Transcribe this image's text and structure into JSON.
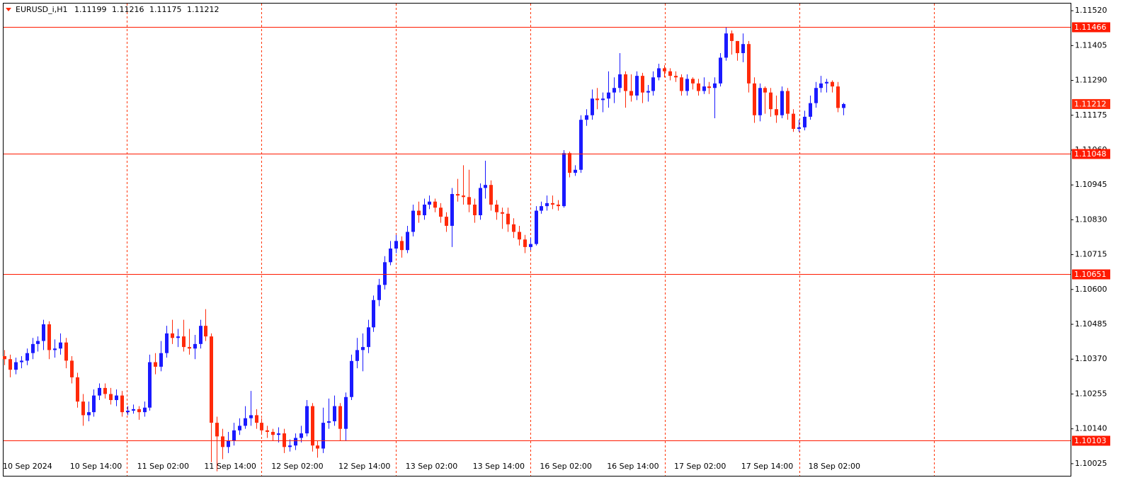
{
  "chart_data": {
    "type": "candlestick",
    "title": "EURUSD_i,H1",
    "categories": [
      "10 Sep 2024",
      null,
      null,
      null,
      null,
      null,
      null,
      null,
      null,
      null,
      null,
      null,
      "10 Sep 14:00",
      null,
      null,
      null,
      null,
      null,
      null,
      null,
      null,
      null,
      null,
      null,
      "11 Sep 02:00",
      null,
      null,
      null,
      null,
      null,
      null,
      null,
      null,
      null,
      null,
      null,
      "11 Sep 14:00",
      null,
      null,
      null,
      null,
      null,
      null,
      null,
      null,
      null,
      null,
      null,
      "12 Sep 02:00",
      null,
      null,
      null,
      null,
      null,
      null,
      null,
      null,
      null,
      null,
      null,
      "12 Sep 14:00",
      null,
      null,
      null,
      null,
      null,
      null,
      null,
      null,
      null,
      null,
      null,
      "13 Sep 02:00",
      null,
      null,
      null,
      null,
      null,
      null,
      null,
      null,
      null,
      null,
      null,
      "13 Sep 14:00",
      null,
      null,
      null,
      null,
      null,
      null,
      null,
      null,
      null,
      null,
      null,
      "16 Sep 02:00",
      null,
      null,
      null,
      null,
      null,
      null,
      null,
      null,
      null,
      null,
      null,
      "16 Sep 14:00",
      null,
      null,
      null,
      null,
      null,
      null,
      null,
      null,
      null,
      null,
      null,
      "17 Sep 02:00",
      null,
      null,
      null,
      null,
      null,
      null,
      null,
      null,
      null,
      null,
      null,
      "17 Sep 14:00",
      null,
      null,
      null,
      null,
      null,
      null,
      null,
      null,
      null,
      null,
      null,
      "18 Sep 02:00",
      null,
      null,
      null,
      null,
      null,
      null
    ],
    "open": [
      1.1038,
      1.1037,
      1.10335,
      1.1036,
      1.10365,
      1.1039,
      1.1042,
      1.1043,
      1.10485,
      1.104,
      1.10405,
      1.10425,
      1.10365,
      1.1031,
      1.1023,
      1.10185,
      1.10195,
      1.1025,
      1.10275,
      1.10255,
      1.10235,
      1.1025,
      1.10195,
      1.102,
      1.10205,
      1.10195,
      1.1021,
      1.1036,
      1.10345,
      1.1039,
      1.10455,
      1.1044,
      1.10445,
      1.1041,
      1.10405,
      1.1042,
      1.1048,
      1.10445,
      1.1016,
      1.10115,
      1.1008,
      1.101,
      1.10135,
      1.1015,
      1.10175,
      1.10185,
      1.1016,
      1.10135,
      1.1013,
      1.1012,
      1.10125,
      1.1008,
      1.10085,
      1.1011,
      1.10125,
      1.10215,
      1.10085,
      1.10075,
      1.1016,
      1.10165,
      1.10215,
      1.1014,
      1.10245,
      1.10364,
      1.104,
      1.1041,
      1.10475,
      1.10565,
      1.10615,
      1.1069,
      1.10735,
      1.1076,
      1.1073,
      1.1079,
      1.1086,
      1.10845,
      1.1088,
      1.1089,
      1.1087,
      1.1084,
      1.1081,
      1.10915,
      1.1091,
      1.10905,
      1.1088,
      1.10845,
      1.10935,
      1.10945,
      1.1088,
      1.10855,
      1.1085,
      1.10815,
      1.1079,
      1.10765,
      1.1074,
      1.1075,
      1.1086,
      1.10875,
      1.10885,
      1.1088,
      1.10875,
      1.1105,
      1.10985,
      1.10995,
      1.1116,
      1.11175,
      1.1123,
      1.11225,
      1.1123,
      1.1125,
      1.11265,
      1.1131,
      1.11255,
      1.1124,
      1.11305,
      1.1125,
      1.11255,
      1.113,
      1.1133,
      1.1132,
      1.11305,
      1.113,
      1.11255,
      1.11295,
      1.1128,
      1.11255,
      1.1127,
      1.11265,
      1.1128,
      1.11365,
      1.11445,
      1.1142,
      1.1138,
      1.1141,
      1.1128,
      1.11175,
      1.11265,
      1.1125,
      1.11195,
      1.11175,
      1.11255,
      1.1118,
      1.1113,
      1.11135,
      1.1117,
      1.11215,
      1.11265,
      1.1128,
      1.11285,
      1.1127,
      1.11199
    ],
    "high": [
      1.104,
      1.10385,
      1.10375,
      1.1038,
      1.10405,
      1.1044,
      1.10445,
      1.105,
      1.10495,
      1.10435,
      1.10455,
      1.1044,
      1.1038,
      1.10325,
      1.10255,
      1.1023,
      1.1027,
      1.1029,
      1.1029,
      1.10275,
      1.1027,
      1.10265,
      1.10215,
      1.1022,
      1.10215,
      1.1023,
      1.10385,
      1.1039,
      1.1043,
      1.1048,
      1.105,
      1.1047,
      1.105,
      1.1047,
      1.1045,
      1.105,
      1.10535,
      1.10455,
      1.1018,
      1.1014,
      1.1013,
      1.1016,
      1.10175,
      1.10215,
      1.10265,
      1.10205,
      1.10175,
      1.1015,
      1.1014,
      1.10145,
      1.1014,
      1.10105,
      1.10125,
      1.1015,
      1.10235,
      1.10225,
      1.101,
      1.1021,
      1.1024,
      1.1025,
      1.10225,
      1.1026,
      1.10385,
      1.1044,
      1.10455,
      1.105,
      1.1058,
      1.10635,
      1.1071,
      1.1076,
      1.1078,
      1.10775,
      1.1081,
      1.1088,
      1.1089,
      1.109,
      1.1091,
      1.109,
      1.10885,
      1.10855,
      1.10935,
      1.10965,
      1.1101,
      1.10995,
      1.109,
      1.1095,
      1.11025,
      1.1096,
      1.10895,
      1.1087,
      1.1087,
      1.10835,
      1.1081,
      1.1078,
      1.1077,
      1.10875,
      1.1089,
      1.1091,
      1.1091,
      1.10895,
      1.1106,
      1.11055,
      1.1101,
      1.11175,
      1.11195,
      1.1126,
      1.11265,
      1.1125,
      1.1132,
      1.113,
      1.1138,
      1.1132,
      1.1131,
      1.1132,
      1.11315,
      1.11275,
      1.1132,
      1.11345,
      1.1134,
      1.1133,
      1.1132,
      1.1131,
      1.1131,
      1.113,
      1.11295,
      1.113,
      1.11285,
      1.113,
      1.1138,
      1.11465,
      1.11455,
      1.1142,
      1.11445,
      1.1142,
      1.113,
      1.1128,
      1.1127,
      1.11265,
      1.1124,
      1.1127,
      1.11265,
      1.11195,
      1.1116,
      1.1119,
      1.1124,
      1.11285,
      1.11305,
      1.11295,
      1.1129,
      1.11285,
      1.11216
    ],
    "low": [
      1.1035,
      1.1031,
      1.1032,
      1.1034,
      1.1035,
      1.1037,
      1.10395,
      1.104,
      1.1037,
      1.10375,
      1.10385,
      1.1034,
      1.1029,
      1.1021,
      1.1015,
      1.10165,
      1.1018,
      1.10235,
      1.1024,
      1.1022,
      1.10215,
      1.1018,
      1.10185,
      1.1019,
      1.1017,
      1.1018,
      1.102,
      1.1032,
      1.1033,
      1.10375,
      1.1042,
      1.1041,
      1.10395,
      1.10385,
      1.1037,
      1.10405,
      1.1043,
      1.1003,
      1.1,
      1.1004,
      1.1006,
      1.10085,
      1.1012,
      1.1014,
      1.1015,
      1.1014,
      1.1012,
      1.1011,
      1.101,
      1.10095,
      1.1006,
      1.10065,
      1.1007,
      1.10095,
      1.10115,
      1.10065,
      1.10045,
      1.1006,
      1.1014,
      1.1015,
      1.101,
      1.101,
      1.10235,
      1.1034,
      1.1033,
      1.1039,
      1.1046,
      1.10545,
      1.106,
      1.1068,
      1.1072,
      1.10705,
      1.1072,
      1.10775,
      1.1082,
      1.1083,
      1.10865,
      1.10855,
      1.1082,
      1.1079,
      1.1074,
      1.1089,
      1.1088,
      1.10855,
      1.1082,
      1.1083,
      1.109,
      1.1086,
      1.1083,
      1.108,
      1.1079,
      1.1077,
      1.10745,
      1.1072,
      1.1073,
      1.10745,
      1.1085,
      1.1086,
      1.10865,
      1.1086,
      1.1087,
      1.1097,
      1.10975,
      1.10985,
      1.1114,
      1.1116,
      1.11195,
      1.11185,
      1.112,
      1.11215,
      1.1125,
      1.112,
      1.1122,
      1.11225,
      1.11215,
      1.1122,
      1.1124,
      1.1129,
      1.113,
      1.1129,
      1.11285,
      1.1124,
      1.1124,
      1.1126,
      1.1124,
      1.11245,
      1.11245,
      1.11165,
      1.1127,
      1.11355,
      1.11375,
      1.11355,
      1.1135,
      1.1125,
      1.1115,
      1.11155,
      1.1118,
      1.1117,
      1.1115,
      1.11165,
      1.1116,
      1.1112,
      1.1112,
      1.11125,
      1.1116,
      1.112,
      1.1125,
      1.1125,
      1.1125,
      1.11185,
      1.11175
    ],
    "close": [
      1.1037,
      1.10335,
      1.1036,
      1.10365,
      1.1039,
      1.1042,
      1.1043,
      1.10485,
      1.104,
      1.10405,
      1.10425,
      1.10365,
      1.1031,
      1.1023,
      1.10185,
      1.10195,
      1.1025,
      1.10275,
      1.10255,
      1.10235,
      1.1025,
      1.10195,
      1.102,
      1.10205,
      1.10195,
      1.1021,
      1.1036,
      1.10345,
      1.1039,
      1.10455,
      1.1044,
      1.10445,
      1.1041,
      1.10405,
      1.1042,
      1.1048,
      1.10445,
      1.1016,
      1.10115,
      1.1008,
      1.101,
      1.10135,
      1.1015,
      1.10175,
      1.10185,
      1.1016,
      1.10135,
      1.1013,
      1.1012,
      1.10125,
      1.1008,
      1.10085,
      1.1011,
      1.10125,
      1.10215,
      1.10085,
      1.10075,
      1.1016,
      1.10165,
      1.10215,
      1.1014,
      1.10245,
      1.10364,
      1.104,
      1.1041,
      1.10475,
      1.10565,
      1.10615,
      1.1069,
      1.10735,
      1.1076,
      1.1073,
      1.1079,
      1.1086,
      1.10845,
      1.1088,
      1.1089,
      1.1087,
      1.1084,
      1.1081,
      1.10915,
      1.1091,
      1.10905,
      1.1088,
      1.10845,
      1.10935,
      1.10945,
      1.1088,
      1.10855,
      1.1085,
      1.10815,
      1.1079,
      1.10765,
      1.1074,
      1.1075,
      1.1086,
      1.10875,
      1.10885,
      1.1088,
      1.10875,
      1.1105,
      1.10985,
      1.10995,
      1.1116,
      1.11175,
      1.1123,
      1.11225,
      1.1123,
      1.1125,
      1.11265,
      1.1131,
      1.11255,
      1.1124,
      1.11305,
      1.1125,
      1.11255,
      1.113,
      1.1133,
      1.1132,
      1.11305,
      1.113,
      1.11255,
      1.11295,
      1.1128,
      1.11255,
      1.1127,
      1.11265,
      1.1128,
      1.11365,
      1.11445,
      1.1142,
      1.1138,
      1.1141,
      1.1128,
      1.11175,
      1.11265,
      1.1125,
      1.11195,
      1.11175,
      1.11255,
      1.1118,
      1.1113,
      1.11135,
      1.1117,
      1.11215,
      1.11265,
      1.1128,
      1.11285,
      1.1127,
      1.11199,
      1.11212
    ],
    "up_color": "#1a1aff",
    "down_color": "#ff2a0a",
    "line_color": "#ff1a00",
    "ylim": [
      1.09985,
      1.11546
    ],
    "yticks": [
      {
        "value": 1.1152,
        "label": "1.11520"
      },
      1.11405,
      {
        "value": 1.1129,
        "label": "1.11290"
      },
      1.11175,
      {
        "value": 1.1106,
        "label": "1.11060"
      },
      1.10945,
      {
        "value": 1.1083,
        "label": "1.10830"
      },
      1.10715,
      {
        "value": 1.106,
        "label": "1.10600"
      },
      1.10485,
      {
        "value": 1.1037,
        "label": "1.10370"
      },
      1.10255,
      {
        "value": 1.1014,
        "label": "1.10140"
      },
      1.10025
    ],
    "hlines": [
      1.11466,
      1.11048,
      1.10651,
      1.10103
    ]
  }
}
